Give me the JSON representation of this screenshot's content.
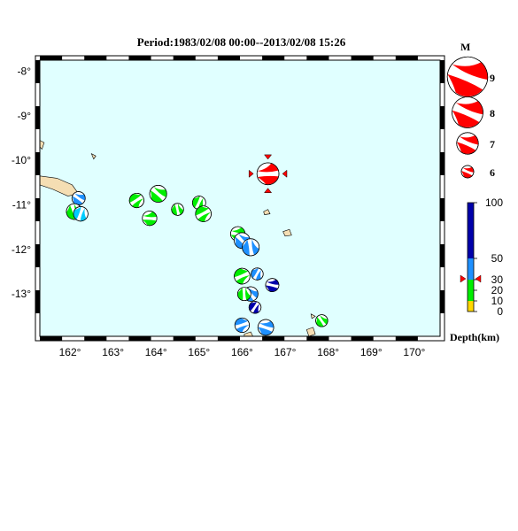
{
  "title": "Period:1983/02/08 00:00--2013/02/08 15:26",
  "map": {
    "lon_range": [
      161.3,
      170.6
    ],
    "lat_range": [
      -13.95,
      -7.75
    ],
    "lon_ticks": [
      "162°",
      "163°",
      "164°",
      "165°",
      "166°",
      "167°",
      "168°",
      "169°",
      "170°"
    ],
    "lat_ticks": [
      "-8°",
      "-9°",
      "-10°",
      "-11°",
      "-12°",
      "-13°"
    ],
    "ocean_color": "#e0ffff",
    "land_color": "#f5deb3"
  },
  "magnitude_legend": {
    "header": "M",
    "items": [
      "9",
      "8",
      "7",
      "6"
    ]
  },
  "depth_legend": {
    "label": "Depth(km)",
    "ticks": [
      "100",
      "50",
      "30",
      "20",
      "10",
      "0"
    ],
    "colors": {
      "deep": "#0000aa",
      "mid": "#1e90ff",
      "shallow": "#00ee00",
      "very_shallow": "#ffd700"
    }
  },
  "events": [
    {
      "lon": 166.6,
      "lat": -10.3,
      "mag": 7.2,
      "color": "#ff0000",
      "highlight": true
    },
    {
      "lon": 162.2,
      "lat": -10.85,
      "mag": 6.5,
      "color": "#1e90ff"
    },
    {
      "lon": 162.1,
      "lat": -11.15,
      "mag": 6.7,
      "color": "#00ee00"
    },
    {
      "lon": 162.25,
      "lat": -11.2,
      "mag": 6.6,
      "color": "#00ccff"
    },
    {
      "lon": 163.55,
      "lat": -10.9,
      "mag": 6.6,
      "color": "#00ee00"
    },
    {
      "lon": 163.85,
      "lat": -11.3,
      "mag": 6.6,
      "color": "#00ee00"
    },
    {
      "lon": 164.05,
      "lat": -10.75,
      "mag": 6.8,
      "color": "#00ee00"
    },
    {
      "lon": 164.5,
      "lat": -11.1,
      "mag": 6.4,
      "color": "#00ee00"
    },
    {
      "lon": 165.0,
      "lat": -10.95,
      "mag": 6.5,
      "color": "#00ee00"
    },
    {
      "lon": 165.1,
      "lat": -11.2,
      "mag": 6.7,
      "color": "#00ee00"
    },
    {
      "lon": 165.9,
      "lat": -11.65,
      "mag": 6.6,
      "color": "#00ee00"
    },
    {
      "lon": 166.0,
      "lat": -11.8,
      "mag": 6.7,
      "color": "#1e90ff"
    },
    {
      "lon": 166.2,
      "lat": -11.95,
      "mag": 6.8,
      "color": "#1e90ff"
    },
    {
      "lon": 166.35,
      "lat": -12.55,
      "mag": 6.4,
      "color": "#1e90ff"
    },
    {
      "lon": 166.0,
      "lat": -12.6,
      "mag": 6.7,
      "color": "#00ee00"
    },
    {
      "lon": 166.7,
      "lat": -12.8,
      "mag": 6.5,
      "color": "#0000aa"
    },
    {
      "lon": 166.2,
      "lat": -13.0,
      "mag": 6.6,
      "color": "#1e90ff"
    },
    {
      "lon": 166.05,
      "lat": -13.0,
      "mag": 6.5,
      "color": "#00ee00"
    },
    {
      "lon": 166.3,
      "lat": -13.3,
      "mag": 6.4,
      "color": "#0000aa"
    },
    {
      "lon": 166.0,
      "lat": -13.7,
      "mag": 6.6,
      "color": "#1e90ff"
    },
    {
      "lon": 166.55,
      "lat": -13.75,
      "mag": 6.7,
      "color": "#1e90ff"
    },
    {
      "lon": 167.85,
      "lat": -13.6,
      "mag": 6.4,
      "color": "#00ee00"
    }
  ]
}
